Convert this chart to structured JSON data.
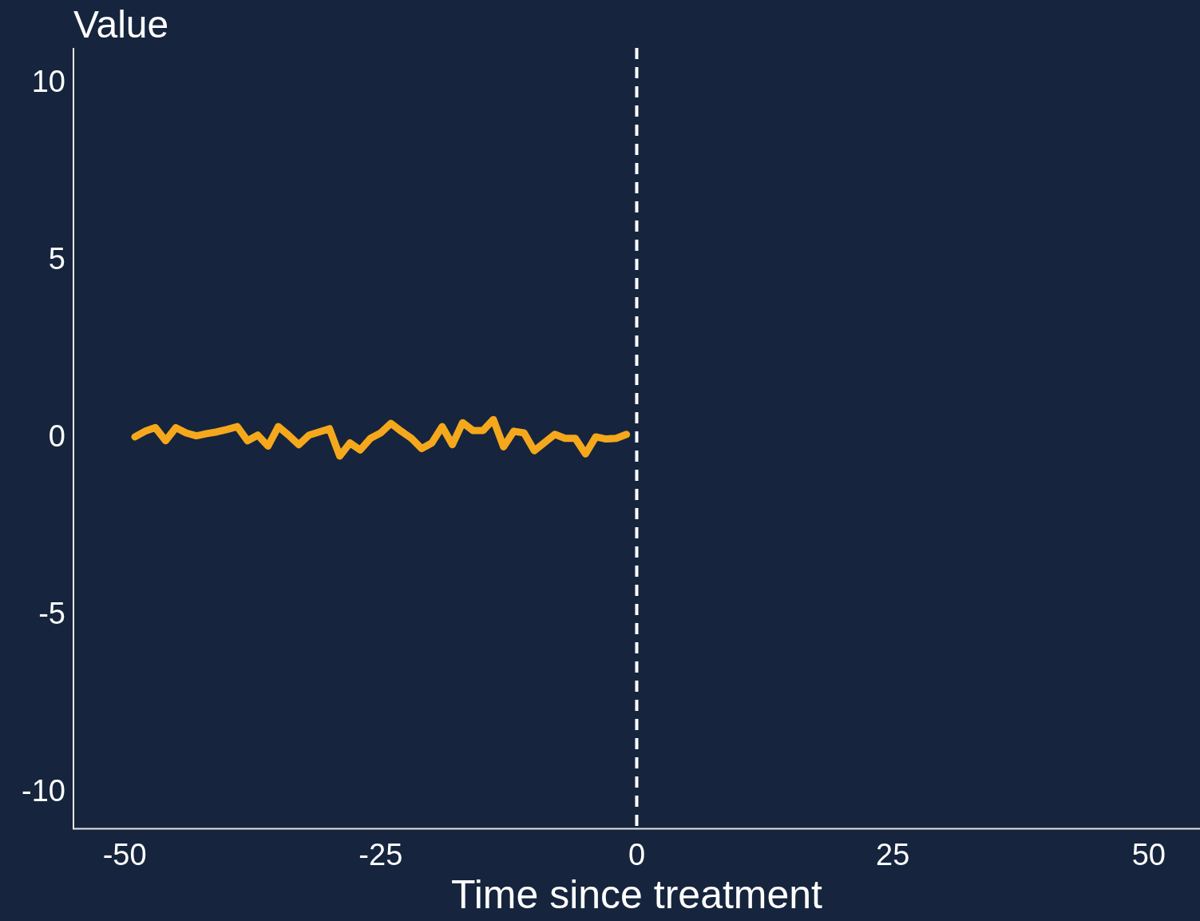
{
  "chart_data": {
    "type": "line",
    "ylabel": "Value",
    "xlabel": "Time since treatment",
    "x": [
      -49,
      -48,
      -47,
      -46,
      -45,
      -44,
      -43,
      -42,
      -41,
      -40,
      -39,
      -38,
      -37,
      -36,
      -35,
      -34,
      -33,
      -32,
      -31,
      -30,
      -29,
      -28,
      -27,
      -26,
      -25,
      -24,
      -23,
      -22,
      -21,
      -20,
      -19,
      -18,
      -17,
      -16,
      -15,
      -14,
      -13,
      -12,
      -11,
      -10,
      -9,
      -8,
      -7,
      -6,
      -5,
      -4,
      -3,
      -2,
      -1
    ],
    "series": [
      {
        "color": "#f5a81c",
        "values": [
          0.04,
          0.2,
          0.3,
          -0.07,
          0.3,
          0.15,
          0.07,
          0.13,
          0.18,
          0.25,
          0.33,
          -0.07,
          0.09,
          -0.22,
          0.33,
          0.09,
          -0.18,
          0.09,
          0.18,
          0.27,
          -0.5,
          -0.13,
          -0.33,
          0,
          0.15,
          0.42,
          0.2,
          0,
          -0.29,
          -0.13,
          0.33,
          -0.18,
          0.44,
          0.22,
          0.22,
          0.53,
          -0.24,
          0.2,
          0.15,
          -0.35,
          -0.12,
          0.11,
          0,
          0,
          -0.44,
          0.04,
          -0.02,
          0,
          0.11
        ]
      }
    ],
    "xlim": [
      -55,
      55
    ],
    "xticks": [
      -50,
      -25,
      0,
      25,
      50
    ],
    "ylim": [
      -11,
      11
    ],
    "yticks": [
      -10,
      -5,
      0,
      5,
      10
    ],
    "ref_lines": [
      {
        "axis": "x",
        "value": 0,
        "color": "#ffffff",
        "line_style": "dashed"
      }
    ],
    "grid": false,
    "legend": false,
    "marker": "none",
    "line_style": "solid"
  }
}
